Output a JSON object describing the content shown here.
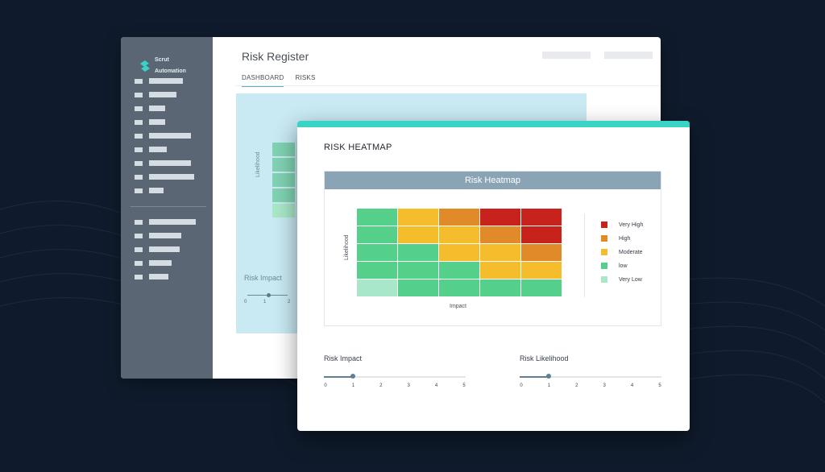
{
  "brand": {
    "name_line1": "Scrut",
    "name_line2": "Automation"
  },
  "back_window": {
    "title": "Risk Register",
    "tabs": [
      {
        "label": "DASHBOARD",
        "active": true
      },
      {
        "label": "RISKS",
        "active": false
      }
    ],
    "panel": {
      "y_axis_label": "Likelihood",
      "slider_label": "Risk Impact",
      "slider_ticks": [
        "0",
        "1",
        "2"
      ]
    }
  },
  "front_window": {
    "title": "RISK HEATMAP",
    "heatmap_title": "Risk Heatmap",
    "x_axis_label": "Impact",
    "y_axis_label": "Likelihood",
    "legend": [
      {
        "label": "Very High",
        "color": "#c8221c"
      },
      {
        "label": "High",
        "color": "#e08a2a"
      },
      {
        "label": "Moderate",
        "color": "#f5bd2c"
      },
      {
        "label": "low",
        "color": "#55d08a"
      },
      {
        "label": "Very Low",
        "color": "#a8e7c7"
      }
    ],
    "impact_slider": {
      "label": "Risk Impact",
      "value": 1,
      "ticks": [
        "0",
        "1",
        "2",
        "3",
        "4",
        "5"
      ]
    },
    "likelihood_slider": {
      "label": "Risk Likelihood",
      "value": 1,
      "ticks": [
        "0",
        "1",
        "2",
        "3",
        "4",
        "5"
      ]
    }
  },
  "chart_data": {
    "type": "heatmap",
    "title": "Risk Heatmap",
    "xlabel": "Impact",
    "ylabel": "Likelihood",
    "rows_top_to_bottom": [
      [
        "low",
        "Moderate",
        "High",
        "Very High",
        "Very High"
      ],
      [
        "low",
        "Moderate",
        "Moderate",
        "High",
        "Very High"
      ],
      [
        "low",
        "low",
        "Moderate",
        "Moderate",
        "High"
      ],
      [
        "low",
        "low",
        "low",
        "Moderate",
        "Moderate"
      ],
      [
        "Very Low",
        "low",
        "low",
        "low",
        "low"
      ]
    ],
    "legend_position": "right"
  }
}
